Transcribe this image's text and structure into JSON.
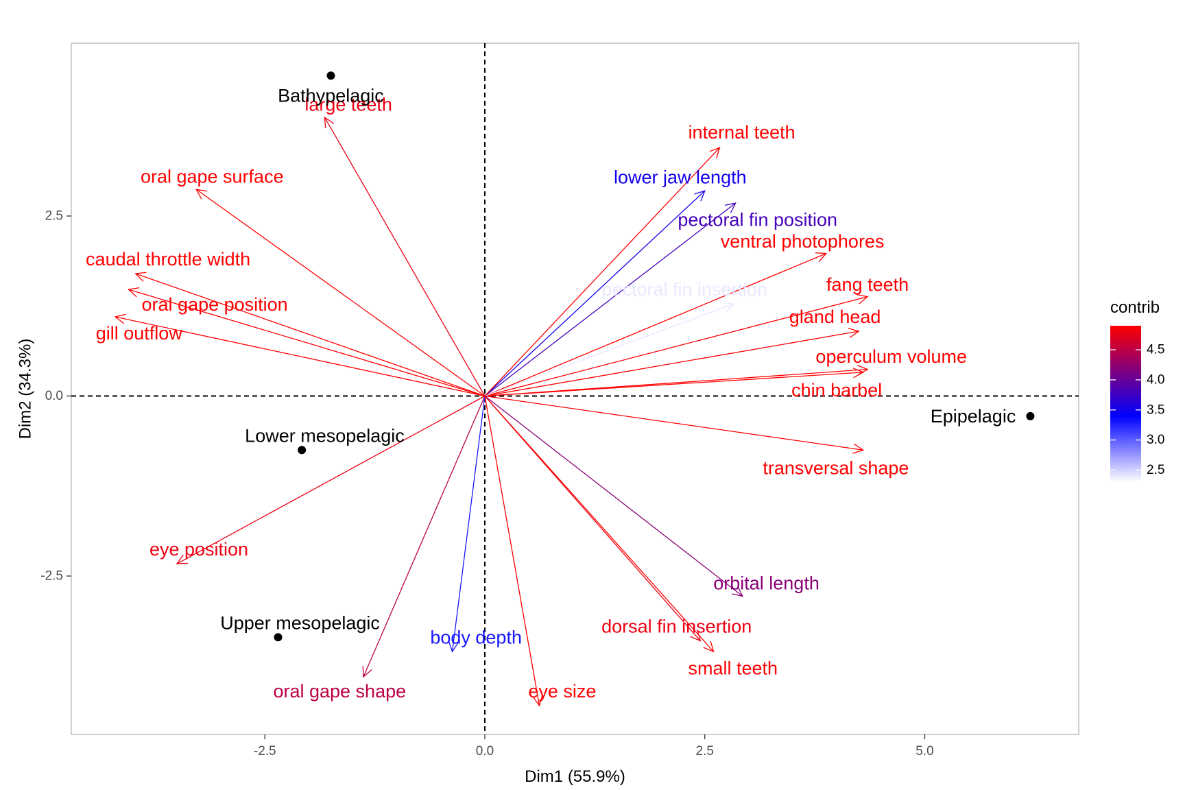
{
  "chart_data": {
    "type": "scatter",
    "subtype": "pca-biplot",
    "xlabel": "Dim1 (55.9%)",
    "ylabel": "Dim2 (34.3%)",
    "xlim": [
      -4.7,
      6.75
    ],
    "ylim": [
      -4.7,
      4.9
    ],
    "xticks": [
      -2.5,
      0.0,
      2.5,
      5.0
    ],
    "xtick_labels": [
      "-2.5",
      "0.0",
      "2.5",
      "5.0"
    ],
    "yticks": [
      -2.5,
      0.0,
      2.5
    ],
    "ytick_labels": [
      "-2.5",
      "0.0",
      "2.5"
    ],
    "grid": false,
    "reference_lines": [
      {
        "axis": "x",
        "value": 0
      },
      {
        "axis": "y",
        "value": 0
      }
    ],
    "individuals": [
      {
        "name": "Bathypelagic",
        "x": -1.75,
        "y": 4.45,
        "label_x": -1.75,
        "label_y": 4.17
      },
      {
        "name": "Lower mesopelagic",
        "x": -2.08,
        "y": -0.75,
        "label_x": -1.82,
        "label_y": -0.55
      },
      {
        "name": "Upper mesopelagic",
        "x": -2.35,
        "y": -3.35,
        "label_x": -2.1,
        "label_y": -3.15
      },
      {
        "name": "Epipelagic",
        "x": 6.2,
        "y": -0.28,
        "label_x": 5.55,
        "label_y": -0.28
      }
    ],
    "variables": [
      {
        "name": "large teeth",
        "x": -1.82,
        "y": 3.87,
        "contrib": 4.8,
        "label_x": -1.55,
        "label_y": 4.05
      },
      {
        "name": "oral gape surface",
        "x": -3.28,
        "y": 2.87,
        "contrib": 4.9,
        "label_x": -3.1,
        "label_y": 3.05
      },
      {
        "name": "caudal throttle width",
        "x": -3.97,
        "y": 1.7,
        "contrib": 4.9,
        "label_x": -3.6,
        "label_y": 1.9
      },
      {
        "name": "oral gape position",
        "x": -4.05,
        "y": 1.48,
        "contrib": 4.9,
        "label_x": -3.07,
        "label_y": 1.27
      },
      {
        "name": "gill outflow",
        "x": -4.2,
        "y": 1.1,
        "contrib": 4.9,
        "label_x": -3.93,
        "label_y": 0.87
      },
      {
        "name": "eye position",
        "x": -3.5,
        "y": -2.33,
        "contrib": 4.8,
        "label_x": -3.25,
        "label_y": -2.13
      },
      {
        "name": "oral gape shape",
        "x": -1.38,
        "y": -3.9,
        "contrib": 4.5,
        "label_x": -1.65,
        "label_y": -4.1
      },
      {
        "name": "body depth",
        "x": -0.37,
        "y": -3.55,
        "contrib": 3.3,
        "label_x": -0.1,
        "label_y": -3.35
      },
      {
        "name": "eye size",
        "x": 0.62,
        "y": -4.3,
        "contrib": 4.9,
        "label_x": 0.88,
        "label_y": -4.1
      },
      {
        "name": "dorsal fin insertion",
        "x": 2.45,
        "y": -3.4,
        "contrib": 4.8,
        "label_x": 2.18,
        "label_y": -3.2
      },
      {
        "name": "small teeth",
        "x": 2.6,
        "y": -3.55,
        "contrib": 4.9,
        "label_x": 2.82,
        "label_y": -3.78
      },
      {
        "name": "orbital length",
        "x": 2.93,
        "y": -2.78,
        "contrib": 4.2,
        "label_x": 3.2,
        "label_y": -2.6
      },
      {
        "name": "transversal shape",
        "x": 4.3,
        "y": -0.75,
        "contrib": 4.9,
        "label_x": 3.99,
        "label_y": -1.0
      },
      {
        "name": "chin barbel",
        "x": 4.3,
        "y": 0.33,
        "contrib": 4.9,
        "label_x": 4.0,
        "label_y": 0.08
      },
      {
        "name": "operculum volume",
        "x": 4.35,
        "y": 0.37,
        "contrib": 4.9,
        "label_x": 4.62,
        "label_y": 0.55
      },
      {
        "name": "gland head",
        "x": 4.25,
        "y": 0.9,
        "contrib": 4.9,
        "label_x": 3.98,
        "label_y": 1.1
      },
      {
        "name": "fang teeth",
        "x": 4.35,
        "y": 1.38,
        "contrib": 4.9,
        "label_x": 4.35,
        "label_y": 1.55
      },
      {
        "name": "ventral photophores",
        "x": 3.88,
        "y": 1.98,
        "contrib": 4.9,
        "label_x": 3.61,
        "label_y": 2.15
      },
      {
        "name": "pectoral fin insertion",
        "x": 2.83,
        "y": 1.28,
        "contrib": 2.4,
        "label_x": 2.27,
        "label_y": 1.48
      },
      {
        "name": "pectoral fin position",
        "x": 2.85,
        "y": 2.68,
        "contrib": 3.8,
        "label_x": 3.1,
        "label_y": 2.45
      },
      {
        "name": "lower jaw length",
        "x": 2.5,
        "y": 2.85,
        "contrib": 3.5,
        "label_x": 2.22,
        "label_y": 3.04
      },
      {
        "name": "internal teeth",
        "x": 2.67,
        "y": 3.45,
        "contrib": 4.9,
        "label_x": 2.92,
        "label_y": 3.66
      }
    ],
    "legend": {
      "title": "contrib",
      "position": "right",
      "range": [
        2.3,
        4.9
      ],
      "ticks": [
        2.5,
        3.0,
        3.5,
        4.0,
        4.5
      ],
      "tick_labels": [
        "2.5",
        "3.0",
        "3.5",
        "4.0",
        "4.5"
      ],
      "gradient": [
        {
          "value": 2.3,
          "color": "#ffffff"
        },
        {
          "value": 3.4,
          "color": "#0000ff"
        },
        {
          "value": 4.9,
          "color": "#ff0000"
        }
      ]
    }
  }
}
